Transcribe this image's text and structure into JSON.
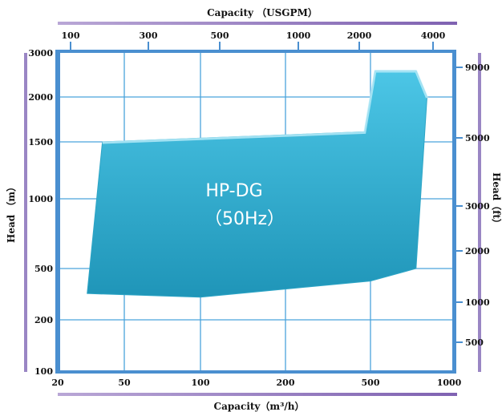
{
  "chart_data": {
    "type": "area",
    "x_top": {
      "label": "Capacity （USGPM）",
      "ticks": [
        "100",
        "300",
        "500",
        "1000",
        "2000",
        "4000"
      ]
    },
    "x_bottom": {
      "label": "Capacity（m³/h）",
      "ticks": [
        "20",
        "50",
        "100",
        "200",
        "500",
        "1000"
      ]
    },
    "y_left": {
      "label": "Head （m）",
      "ticks": [
        "3000",
        "2000",
        "1500",
        "1000",
        "500",
        "200",
        "100"
      ]
    },
    "y_right": {
      "label": "Head（ft）",
      "ticks": [
        "9000",
        "5000",
        "3000",
        "2000",
        "1000",
        "500"
      ]
    },
    "region": {
      "name": "HP-DG",
      "subtitle": "（50Hz）",
      "color": "#3BBBD9",
      "boundary": [
        {
          "q": 37,
          "h": 1500
        },
        {
          "q": 470,
          "h": 1600
        },
        {
          "q": 520,
          "h": 2550
        },
        {
          "q": 730,
          "h": 2550
        },
        {
          "q": 800,
          "h": 2000
        },
        {
          "q": 730,
          "h": 500
        },
        {
          "q": 500,
          "h": 400
        },
        {
          "q": 100,
          "h": 300
        },
        {
          "q": 30,
          "h": 320
        }
      ]
    },
    "grid": true
  }
}
